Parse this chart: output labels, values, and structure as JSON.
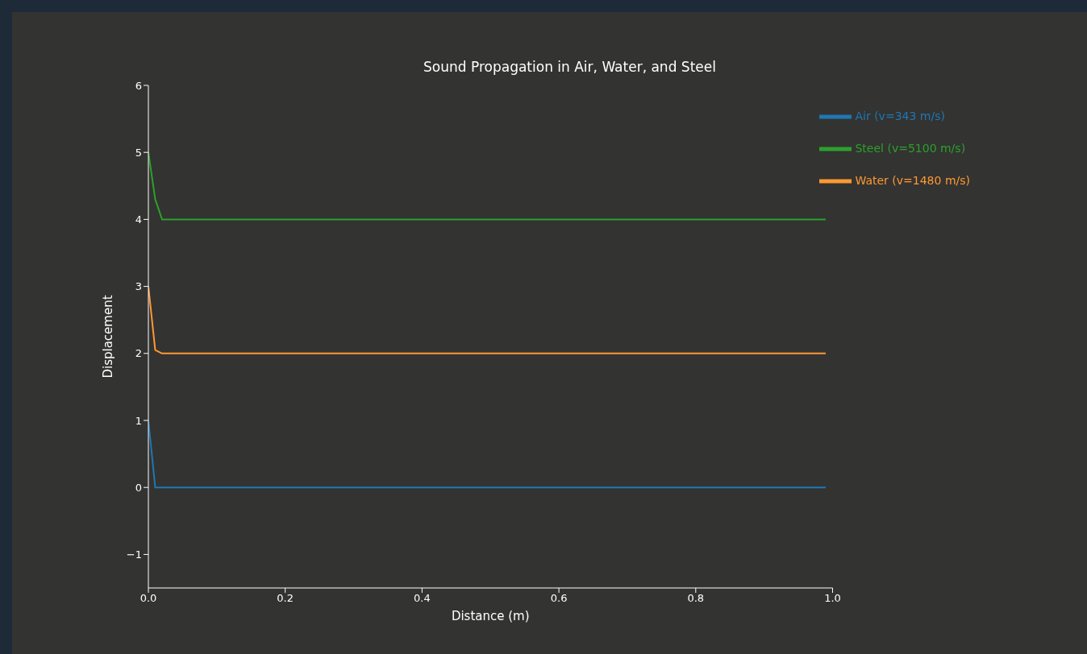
{
  "chart_data": {
    "type": "line",
    "title": "Sound Propagation in Air, Water, and Steel",
    "xlabel": "Distance (m)",
    "ylabel": "Displacement",
    "xlim": [
      0,
      1
    ],
    "ylim": [
      -1.5,
      6
    ],
    "xticks": [
      {
        "value": 0,
        "label": "0.0"
      },
      {
        "value": 0.2,
        "label": "0.2"
      },
      {
        "value": 0.4,
        "label": "0.4"
      },
      {
        "value": 0.6,
        "label": "0.6"
      },
      {
        "value": 0.8,
        "label": "0.8"
      },
      {
        "value": 1,
        "label": "1.0"
      }
    ],
    "yticks": [
      {
        "value": -1,
        "label": "−1"
      },
      0,
      1,
      2,
      3,
      4,
      5,
      6
    ],
    "grid": false,
    "legend": "top right",
    "marker": "none",
    "line_style": "solid",
    "series": [
      {
        "name": "Air (v=343 m/s)",
        "color": "#1f77b4",
        "x": [
          0,
          0.01,
          0.02,
          0.5,
          0.99
        ],
        "values": [
          1,
          0,
          0,
          0,
          0
        ]
      },
      {
        "name": "Water (v=1480 m/s)",
        "color": "#ff9933",
        "x": [
          0,
          0.01,
          0.02,
          0.5,
          0.99
        ],
        "values": [
          3,
          2.05,
          2,
          2,
          2
        ]
      },
      {
        "name": "Steel (v=5100 m/s)",
        "color": "#2ca02c",
        "x": [
          0,
          0.01,
          0.02,
          0.5,
          0.99
        ],
        "values": [
          5,
          4.3,
          4,
          4,
          4
        ]
      }
    ]
  }
}
